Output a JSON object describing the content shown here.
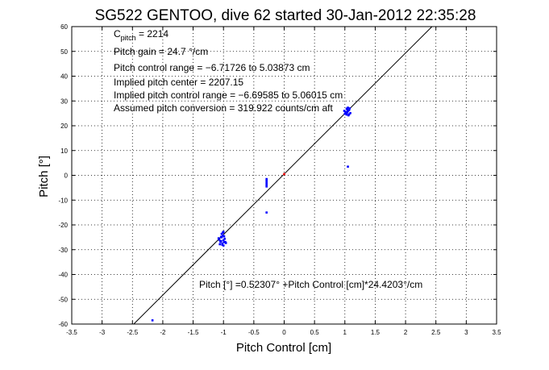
{
  "chart_data": {
    "type": "scatter",
    "title": "SG522 GENTOO, dive 62 started 30-Jan-2012 22:35:28",
    "xlabel": "Pitch Control [cm]",
    "ylabel": "Pitch [°]",
    "xlim": [
      -3.5,
      3.5
    ],
    "ylim": [
      -60,
      60
    ],
    "xticks": [
      -3.5,
      -3,
      -2.5,
      -2,
      -1.5,
      -1,
      -0.5,
      0,
      0.5,
      1,
      1.5,
      2,
      2.5,
      3,
      3.5
    ],
    "yticks": [
      -60,
      -50,
      -40,
      -30,
      -20,
      -10,
      0,
      10,
      20,
      30,
      40,
      50,
      60
    ],
    "grid": true,
    "annotations": {
      "c_pitch_main": "C",
      "c_pitch_sub": "pitch",
      "c_pitch_value": " = 2214",
      "lines": [
        "Pitch gain = 24.7 °/cm",
        "Pitch control range = −6.71726 to 5.03873 cm",
        "Implied pitch center = 2207.15",
        "Implied pitch control range = −6.69585 to 5.06015 cm",
        "Assumed pitch conversion = 319.922 counts/cm aft"
      ],
      "fit": "Pitch [°] =0.52307° +Pitch Control [cm]*24.4203°/cm"
    },
    "fit_line": {
      "intercept": 0.52307,
      "slope": 24.4203
    },
    "series": [
      {
        "color": "#0000ff",
        "points": [
          [
            -1.02,
            -27.5
          ],
          [
            -1.05,
            -26.8
          ],
          [
            -1.0,
            -26.2
          ],
          [
            -0.98,
            -25.6
          ],
          [
            -1.03,
            -25.0
          ],
          [
            -1.01,
            -24.3
          ],
          [
            -1.04,
            -24.8
          ],
          [
            -0.99,
            -27.0
          ],
          [
            -1.06,
            -27.8
          ],
          [
            -1.0,
            -28.3
          ],
          [
            -1.03,
            -23.6
          ],
          [
            -1.01,
            -23.1
          ],
          [
            -0.97,
            -26.9
          ],
          [
            -1.07,
            -26.0
          ],
          [
            -1.02,
            -28.0
          ],
          [
            -0.96,
            -27.3
          ],
          [
            -1.08,
            -25.4
          ],
          [
            -1.0,
            -22.8
          ],
          [
            -1.04,
            -26.5
          ],
          [
            -0.99,
            -24.6
          ],
          [
            1.0,
            24.8
          ],
          [
            1.02,
            25.3
          ],
          [
            1.05,
            25.9
          ],
          [
            1.07,
            26.3
          ],
          [
            1.03,
            24.5
          ],
          [
            1.08,
            27.0
          ],
          [
            1.04,
            26.6
          ],
          [
            1.06,
            24.2
          ],
          [
            1.01,
            25.6
          ],
          [
            1.09,
            25.1
          ],
          [
            1.05,
            27.3
          ],
          [
            0.99,
            26.0
          ],
          [
            1.03,
            26.9
          ],
          [
            1.07,
            24.6
          ],
          [
            1.04,
            25.4
          ],
          [
            -0.29,
            -3.0
          ],
          [
            -0.29,
            -2.2
          ],
          [
            -0.29,
            -1.5
          ],
          [
            -0.29,
            -3.8
          ],
          [
            -0.29,
            -4.5
          ],
          [
            -0.29,
            -15.0
          ],
          [
            -2.17,
            -58.5
          ],
          [
            1.05,
            3.5
          ]
        ]
      },
      {
        "color": "#ff0000",
        "points": [
          [
            0.0,
            0.5
          ]
        ]
      }
    ]
  }
}
